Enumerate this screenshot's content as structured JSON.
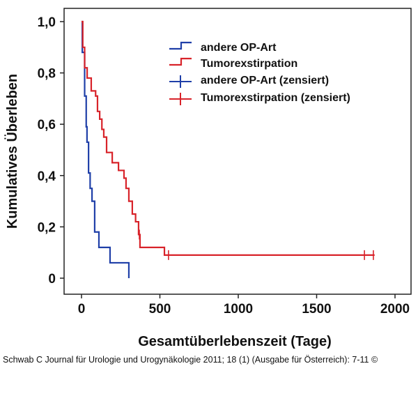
{
  "chart_data": {
    "type": "line",
    "title": "",
    "xlabel": "Gesamtüberlebenszeit (Tage)",
    "ylabel": "Kumulatives Überleben",
    "xlim": [
      -100,
      2100
    ],
    "ylim": [
      -0.06,
      1.05
    ],
    "xticks": [
      "0",
      "500",
      "1000",
      "1500",
      "2000"
    ],
    "yticks": [
      "0",
      "0,2",
      "0,4",
      "0,6",
      "0,8",
      "1,0"
    ],
    "grid": false,
    "legend_placement": "top-right",
    "legend": [
      "andere OP-Art",
      "Tumorexstirpation",
      "andere OP-Art (zensiert)",
      "Tumorexstirpation (zensiert)"
    ],
    "series": [
      {
        "name": "andere OP-Art",
        "color": "#1f3fa8",
        "step": true,
        "x": [
          0,
          5,
          20,
          30,
          35,
          45,
          55,
          67,
          84,
          111,
          182,
          302
        ],
        "y": [
          1.0,
          0.88,
          0.71,
          0.59,
          0.53,
          0.41,
          0.35,
          0.3,
          0.18,
          0.12,
          0.06,
          0.0
        ],
        "censored": []
      },
      {
        "name": "Tumorexstirpation",
        "color": "#d8232a",
        "step": true,
        "x": [
          0,
          8,
          20,
          36,
          62,
          90,
          102,
          116,
          130,
          142,
          160,
          196,
          236,
          271,
          284,
          302,
          324,
          345,
          364,
          373,
          529,
          1870
        ],
        "y": [
          1.0,
          0.9,
          0.82,
          0.78,
          0.73,
          0.71,
          0.65,
          0.62,
          0.58,
          0.55,
          0.49,
          0.45,
          0.42,
          0.39,
          0.35,
          0.3,
          0.25,
          0.22,
          0.17,
          0.12,
          0.09,
          0.09
        ],
        "censored": [
          [
            369,
            0.17
          ],
          [
            555,
            0.09
          ],
          [
            1805,
            0.09
          ],
          [
            1862,
            0.09
          ]
        ]
      }
    ]
  },
  "footer": "Schwab C Journal für Urologie und Urogynäkologie 2011; 18 (1) (Ausgabe für Österreich): 7-11 ©"
}
